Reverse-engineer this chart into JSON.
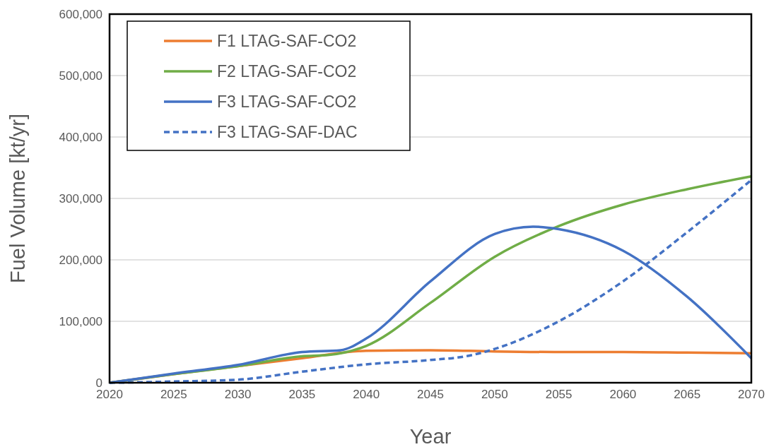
{
  "chart_data": {
    "type": "line",
    "xlabel": "Year",
    "ylabel": "Fuel Volume [kt/yr]",
    "xlim": [
      2020,
      2070
    ],
    "xticks": [
      2020,
      2025,
      2030,
      2035,
      2040,
      2045,
      2050,
      2055,
      2060,
      2065,
      2070
    ],
    "ylim": [
      0,
      600000
    ],
    "yticks": [
      {
        "value": 0,
        "label": "0"
      },
      {
        "value": 100000,
        "label": "100,000"
      },
      {
        "value": 200000,
        "label": "200,000"
      },
      {
        "value": 300000,
        "label": "300,000"
      },
      {
        "value": 400000,
        "label": "400,000"
      },
      {
        "value": 500000,
        "label": "500,000"
      },
      {
        "value": 600000,
        "label": "600,000"
      }
    ],
    "grid": "y",
    "legend": "top left",
    "marker": "none",
    "series": [
      {
        "name": "F1 LTAG-SAF-CO2",
        "color": "#ed7d31",
        "line_style": "solid",
        "x": [
          2020,
          2025,
          2030,
          2035,
          2040,
          2045,
          2050,
          2055,
          2060,
          2065,
          2070
        ],
        "values": [
          0,
          14000,
          27000,
          40000,
          52000,
          53000,
          51000,
          50000,
          50000,
          49000,
          48000
        ]
      },
      {
        "name": "F2 LTAG-SAF-CO2",
        "color": "#70ad47",
        "line_style": "solid",
        "x": [
          2020,
          2025,
          2030,
          2035,
          2037,
          2040,
          2045,
          2050,
          2055,
          2060,
          2065,
          2070
        ],
        "values": [
          0,
          14000,
          27000,
          43000,
          45000,
          60000,
          130000,
          205000,
          255000,
          290000,
          315000,
          336000
        ]
      },
      {
        "name": "F3 LTAG-SAF-CO2",
        "color": "#4472c4",
        "line_style": "solid",
        "x": [
          2020,
          2025,
          2030,
          2035,
          2038,
          2040,
          2045,
          2050,
          2053,
          2055,
          2060,
          2065,
          2070
        ],
        "values": [
          0,
          15000,
          29000,
          50000,
          53000,
          72000,
          165000,
          242000,
          254000,
          250000,
          215000,
          140000,
          40000
        ]
      },
      {
        "name": "F3 LTAG-SAF-DAC",
        "color": "#4472c4",
        "line_style": "dashed",
        "x": [
          2020,
          2025,
          2030,
          2035,
          2040,
          2045,
          2048,
          2050,
          2055,
          2060,
          2065,
          2070
        ],
        "values": [
          0,
          2000,
          5000,
          18000,
          30000,
          37000,
          44000,
          55000,
          100000,
          165000,
          245000,
          330000
        ]
      }
    ]
  }
}
